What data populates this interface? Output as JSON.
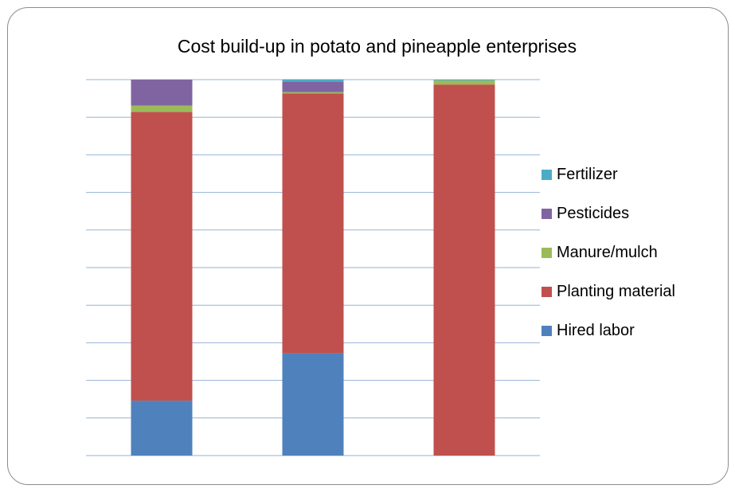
{
  "chart_data": {
    "type": "bar",
    "stacked": true,
    "title": "Cost build-up in potato and pineapple enterprises",
    "xlabel": "",
    "ylabel": "",
    "ylim": [
      0,
      100
    ],
    "grid": true,
    "legend_position": "right",
    "categories": [
      "",
      "",
      ""
    ],
    "series": [
      {
        "name": "Hired labor",
        "color": "#4F81BD",
        "values": [
          14.6,
          27.2,
          0
        ]
      },
      {
        "name": "Planting material",
        "color": "#C0504D",
        "values": [
          76.8,
          69.1,
          98.7
        ]
      },
      {
        "name": "Manure/mulch",
        "color": "#9BBB59",
        "values": [
          1.7,
          0.4,
          1.1
        ]
      },
      {
        "name": "Pesticides",
        "color": "#8064A2",
        "values": [
          6.9,
          2.8,
          0
        ]
      },
      {
        "name": "Fertilizer",
        "color": "#4BACC6",
        "values": [
          0,
          0.6,
          0.2
        ]
      }
    ]
  }
}
